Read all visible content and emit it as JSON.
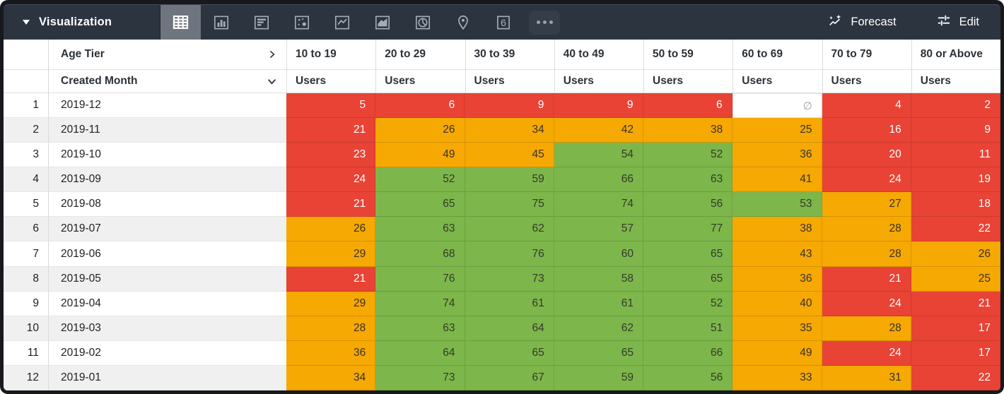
{
  "toolbar": {
    "title": "Visualization",
    "forecast_label": "Forecast",
    "edit_label": "Edit",
    "chart_type_icons": [
      {
        "name": "table-icon",
        "selected": true
      },
      {
        "name": "bar-chart-icon",
        "selected": false
      },
      {
        "name": "row-chart-icon",
        "selected": false
      },
      {
        "name": "scatter-plot-icon",
        "selected": false
      },
      {
        "name": "line-chart-icon",
        "selected": false
      },
      {
        "name": "area-chart-icon",
        "selected": false
      },
      {
        "name": "pie-chart-icon",
        "selected": false
      },
      {
        "name": "map-pin-icon",
        "selected": false
      },
      {
        "name": "single-value-icon",
        "selected": false
      },
      {
        "name": "more-options-icon",
        "selected": false
      }
    ]
  },
  "table": {
    "pivot_field_label": "Age Tier",
    "row_field_label": "Created Month",
    "measure_label": "Users",
    "null_symbol": "∅",
    "age_tier_columns": [
      "10 to 19",
      "20 to 29",
      "30 to 39",
      "40 to 49",
      "50 to 59",
      "60 to 69",
      "70 to 79",
      "80 or Above"
    ],
    "rows": [
      {
        "num": "1",
        "month": "2019-12",
        "cells": [
          {
            "value": "5",
            "color": "red"
          },
          {
            "value": "6",
            "color": "red"
          },
          {
            "value": "9",
            "color": "red"
          },
          {
            "value": "9",
            "color": "red"
          },
          {
            "value": "6",
            "color": "red"
          },
          {
            "value": "∅",
            "color": "null"
          },
          {
            "value": "4",
            "color": "red"
          },
          {
            "value": "2",
            "color": "red"
          }
        ]
      },
      {
        "num": "2",
        "month": "2019-11",
        "cells": [
          {
            "value": "21",
            "color": "red"
          },
          {
            "value": "26",
            "color": "orange"
          },
          {
            "value": "34",
            "color": "orange"
          },
          {
            "value": "42",
            "color": "orange"
          },
          {
            "value": "38",
            "color": "orange"
          },
          {
            "value": "25",
            "color": "orange"
          },
          {
            "value": "16",
            "color": "red"
          },
          {
            "value": "9",
            "color": "red"
          }
        ]
      },
      {
        "num": "3",
        "month": "2019-10",
        "cells": [
          {
            "value": "23",
            "color": "red"
          },
          {
            "value": "49",
            "color": "orange"
          },
          {
            "value": "45",
            "color": "orange"
          },
          {
            "value": "54",
            "color": "green"
          },
          {
            "value": "52",
            "color": "green"
          },
          {
            "value": "36",
            "color": "orange"
          },
          {
            "value": "20",
            "color": "red"
          },
          {
            "value": "11",
            "color": "red"
          }
        ]
      },
      {
        "num": "4",
        "month": "2019-09",
        "cells": [
          {
            "value": "24",
            "color": "red"
          },
          {
            "value": "52",
            "color": "green"
          },
          {
            "value": "59",
            "color": "green"
          },
          {
            "value": "66",
            "color": "green"
          },
          {
            "value": "63",
            "color": "green"
          },
          {
            "value": "41",
            "color": "orange"
          },
          {
            "value": "24",
            "color": "red"
          },
          {
            "value": "19",
            "color": "red"
          }
        ]
      },
      {
        "num": "5",
        "month": "2019-08",
        "cells": [
          {
            "value": "21",
            "color": "red"
          },
          {
            "value": "65",
            "color": "green"
          },
          {
            "value": "75",
            "color": "green"
          },
          {
            "value": "74",
            "color": "green"
          },
          {
            "value": "56",
            "color": "green"
          },
          {
            "value": "53",
            "color": "green"
          },
          {
            "value": "27",
            "color": "orange"
          },
          {
            "value": "18",
            "color": "red"
          }
        ]
      },
      {
        "num": "6",
        "month": "2019-07",
        "cells": [
          {
            "value": "26",
            "color": "orange"
          },
          {
            "value": "63",
            "color": "green"
          },
          {
            "value": "62",
            "color": "green"
          },
          {
            "value": "57",
            "color": "green"
          },
          {
            "value": "77",
            "color": "green"
          },
          {
            "value": "38",
            "color": "orange"
          },
          {
            "value": "28",
            "color": "orange"
          },
          {
            "value": "22",
            "color": "red"
          }
        ]
      },
      {
        "num": "7",
        "month": "2019-06",
        "cells": [
          {
            "value": "29",
            "color": "orange"
          },
          {
            "value": "68",
            "color": "green"
          },
          {
            "value": "76",
            "color": "green"
          },
          {
            "value": "60",
            "color": "green"
          },
          {
            "value": "65",
            "color": "green"
          },
          {
            "value": "43",
            "color": "orange"
          },
          {
            "value": "28",
            "color": "orange"
          },
          {
            "value": "26",
            "color": "orange"
          }
        ]
      },
      {
        "num": "8",
        "month": "2019-05",
        "cells": [
          {
            "value": "21",
            "color": "red"
          },
          {
            "value": "76",
            "color": "green"
          },
          {
            "value": "73",
            "color": "green"
          },
          {
            "value": "58",
            "color": "green"
          },
          {
            "value": "65",
            "color": "green"
          },
          {
            "value": "36",
            "color": "orange"
          },
          {
            "value": "21",
            "color": "red"
          },
          {
            "value": "25",
            "color": "orange"
          }
        ]
      },
      {
        "num": "9",
        "month": "2019-04",
        "cells": [
          {
            "value": "29",
            "color": "orange"
          },
          {
            "value": "74",
            "color": "green"
          },
          {
            "value": "61",
            "color": "green"
          },
          {
            "value": "61",
            "color": "green"
          },
          {
            "value": "52",
            "color": "green"
          },
          {
            "value": "40",
            "color": "orange"
          },
          {
            "value": "24",
            "color": "red"
          },
          {
            "value": "21",
            "color": "red"
          }
        ]
      },
      {
        "num": "10",
        "month": "2019-03",
        "cells": [
          {
            "value": "28",
            "color": "orange"
          },
          {
            "value": "63",
            "color": "green"
          },
          {
            "value": "64",
            "color": "green"
          },
          {
            "value": "62",
            "color": "green"
          },
          {
            "value": "51",
            "color": "green"
          },
          {
            "value": "35",
            "color": "orange"
          },
          {
            "value": "28",
            "color": "orange"
          },
          {
            "value": "17",
            "color": "red"
          }
        ]
      },
      {
        "num": "11",
        "month": "2019-02",
        "cells": [
          {
            "value": "36",
            "color": "orange"
          },
          {
            "value": "64",
            "color": "green"
          },
          {
            "value": "65",
            "color": "green"
          },
          {
            "value": "65",
            "color": "green"
          },
          {
            "value": "66",
            "color": "green"
          },
          {
            "value": "49",
            "color": "orange"
          },
          {
            "value": "24",
            "color": "red"
          },
          {
            "value": "17",
            "color": "red"
          }
        ]
      },
      {
        "num": "12",
        "month": "2019-01",
        "cells": [
          {
            "value": "34",
            "color": "orange"
          },
          {
            "value": "73",
            "color": "green"
          },
          {
            "value": "67",
            "color": "green"
          },
          {
            "value": "59",
            "color": "green"
          },
          {
            "value": "56",
            "color": "green"
          },
          {
            "value": "33",
            "color": "orange"
          },
          {
            "value": "31",
            "color": "orange"
          },
          {
            "value": "22",
            "color": "red"
          }
        ]
      }
    ]
  },
  "colors": {
    "red": "#e94335",
    "orange": "#f6a803",
    "green": "#7db64a",
    "toolbar_bg": "#2c3440",
    "selected_tile_bg": "#6e757f"
  }
}
